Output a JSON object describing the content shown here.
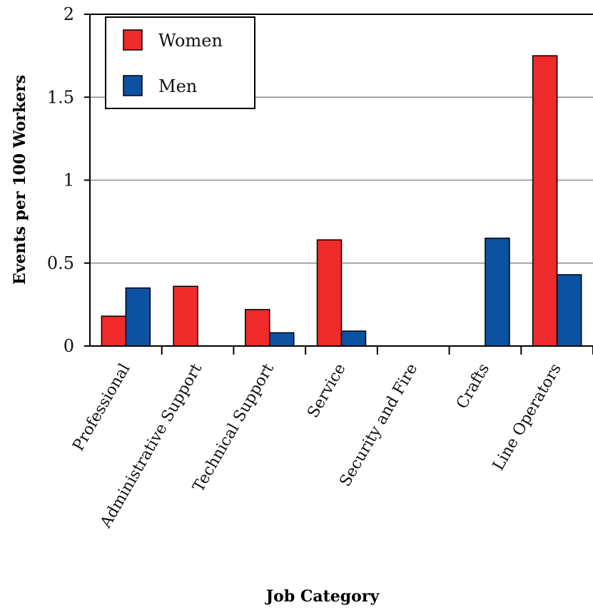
{
  "chart_data": {
    "type": "bar",
    "xlabel": "Job Category",
    "ylabel": "Events per 100 Workers",
    "ylim": [
      0,
      2
    ],
    "yticks": [
      0,
      0.5,
      1,
      1.5,
      2
    ],
    "ytick_labels": [
      "0",
      "0.5",
      "1",
      "1.5",
      "2"
    ],
    "grid": true,
    "legend_position": "top-left",
    "categories": [
      "Professional",
      "Administrative Support",
      "Technical Support",
      "Service",
      "Security and Fire",
      "Crafts",
      "Line Operators"
    ],
    "series": [
      {
        "name": "Women",
        "color": "#ee2a2a",
        "values": [
          0.18,
          0.36,
          0.22,
          0.64,
          0,
          0,
          1.75
        ]
      },
      {
        "name": "Men",
        "color": "#0b52a3",
        "values": [
          0.35,
          0,
          0.08,
          0.09,
          0,
          0.65,
          0.43
        ]
      }
    ]
  }
}
